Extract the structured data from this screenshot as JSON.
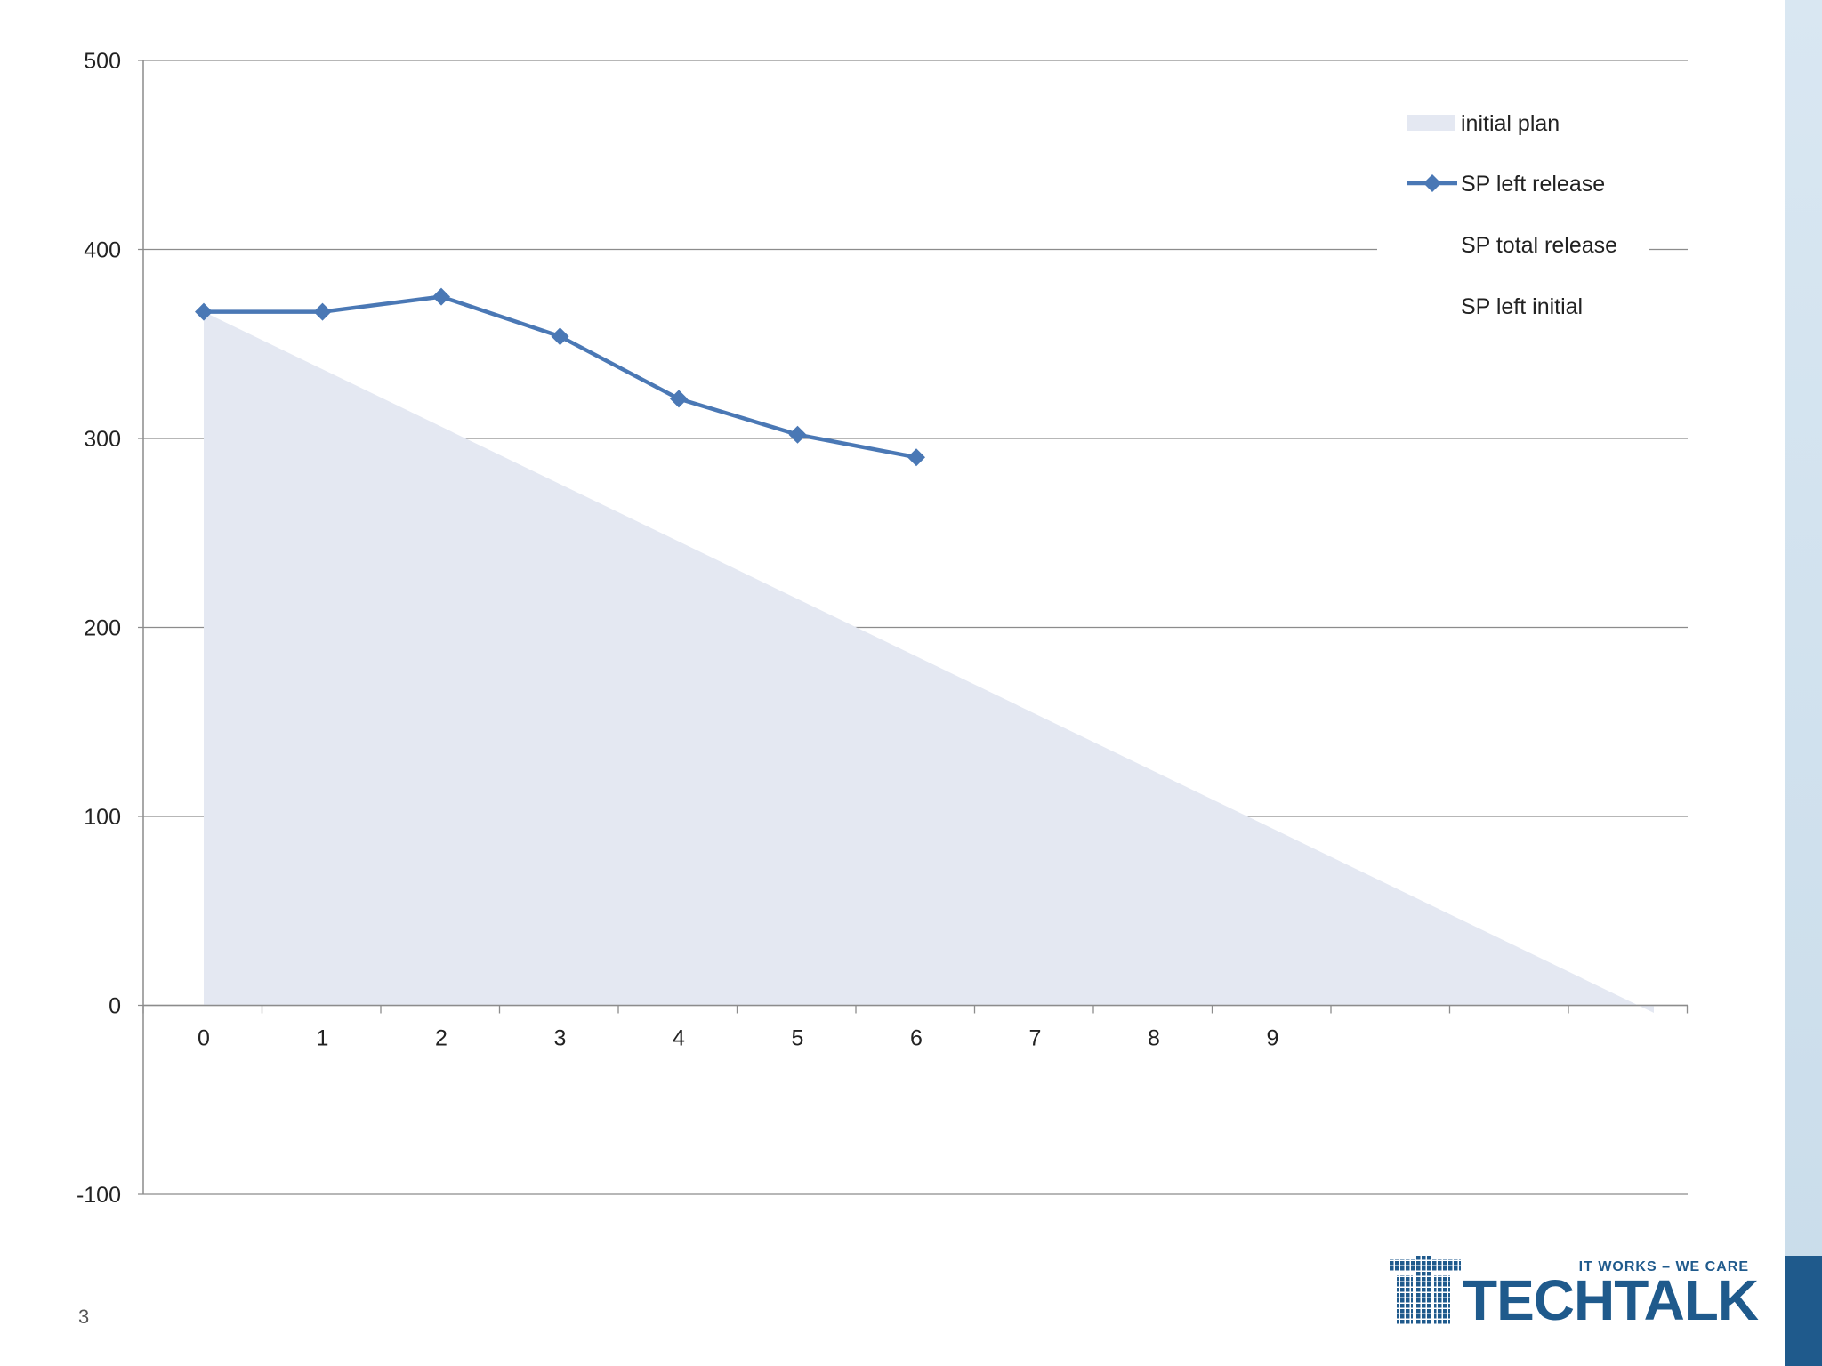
{
  "page": {
    "number": "3"
  },
  "logo": {
    "tagline": "IT WORKS – WE CARE",
    "word": "TECHTALK",
    "brand_color": "#1f5a8c"
  },
  "colors": {
    "series_line": "#4a78b5",
    "plan_fill": "#e4e8f2",
    "grid": "#8c8c8c"
  },
  "chart_data": {
    "type": "line",
    "title": "",
    "xlabel": "",
    "ylabel": "",
    "ylim": [
      -100,
      500
    ],
    "yticks": [
      500,
      400,
      300,
      200,
      100,
      0,
      -100
    ],
    "x_categories": [
      "0",
      "1",
      "2",
      "3",
      "4",
      "5",
      "6",
      "7",
      "8",
      "9",
      "",
      "",
      ""
    ],
    "grid": true,
    "legend_position": "top-right",
    "series": [
      {
        "name": "initial plan",
        "type": "area",
        "x": [
          0,
          12
        ],
        "values": [
          367,
          -4
        ]
      },
      {
        "name": "SP left release",
        "type": "line",
        "marker": "diamond",
        "x": [
          0,
          1,
          2,
          3,
          4,
          5,
          6
        ],
        "values": [
          367,
          367,
          375,
          354,
          321,
          302,
          290
        ]
      },
      {
        "name": "SP total release",
        "type": "line",
        "x": [],
        "values": []
      },
      {
        "name": "SP left initial",
        "type": "line",
        "x": [],
        "values": []
      }
    ]
  }
}
